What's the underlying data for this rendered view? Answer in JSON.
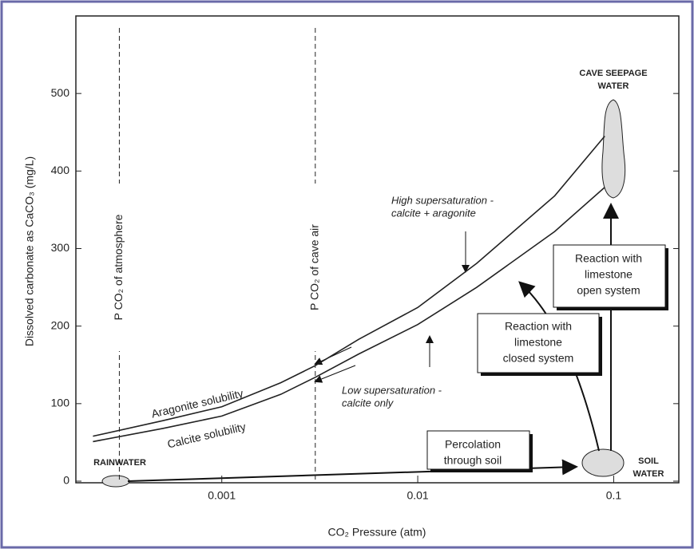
{
  "chart_data": {
    "type": "line",
    "x_label": "CO₂ Pressure (atm)",
    "y_label": "Dissolved carbonate as CaCO₃ (mg/L)",
    "log_x": true,
    "xlim": [
      0.00018,
      0.215
    ],
    "ylim": [
      0,
      600
    ],
    "xticks": [
      0.001,
      0.01,
      0.1
    ],
    "yticks": [
      0,
      100,
      200,
      300,
      400,
      500
    ],
    "x": [
      0.00022,
      0.0005,
      0.001,
      0.002,
      0.003,
      0.005,
      0.01,
      0.02,
      0.05,
      0.09
    ],
    "series": [
      {
        "name": "Aragonite solubility",
        "color": "#222222",
        "values": [
          58,
          78,
          96,
          127,
          149,
          183,
          224,
          281,
          368,
          445
        ]
      },
      {
        "name": "Calcite solubility",
        "color": "#222222",
        "values": [
          51,
          68,
          84,
          112,
          134,
          164,
          202,
          250,
          322,
          379
        ]
      }
    ],
    "reference_lines": [
      {
        "x": 0.0003,
        "label": "P CO₂ of atmosphere"
      },
      {
        "x": 0.003,
        "label": "P CO₂ of cave air"
      }
    ],
    "annotations": [
      {
        "lines": [
          "High supersaturation -",
          "calcite + aragonite"
        ]
      },
      {
        "lines": [
          "Low supersaturation -",
          "calcite only"
        ]
      },
      {
        "lines": [
          "RAINWATER"
        ]
      },
      {
        "lines": [
          "SOIL",
          "WATER"
        ]
      },
      {
        "lines": [
          "CAVE SEEPAGE",
          "WATER"
        ]
      },
      {
        "lines": [
          "Percolation",
          "through soil"
        ]
      },
      {
        "lines": [
          "Reaction with",
          "limestone",
          "closed system"
        ]
      },
      {
        "lines": [
          "Reaction with",
          "limestone",
          "open system"
        ]
      }
    ]
  }
}
